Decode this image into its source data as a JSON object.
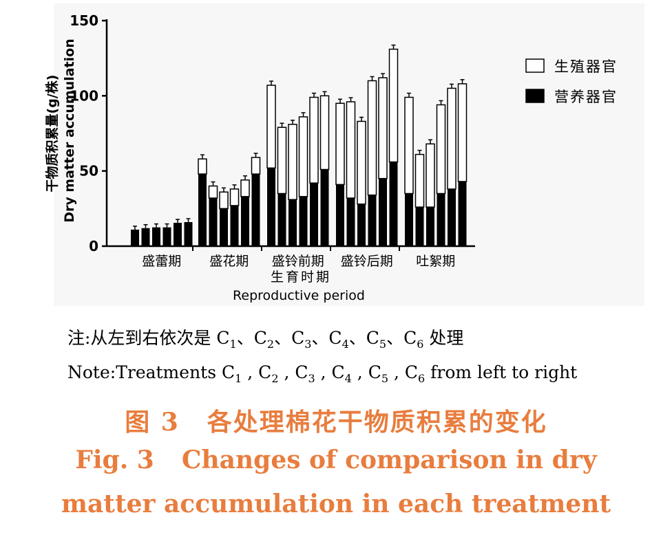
{
  "chart_data": {
    "type": "bar",
    "stacked": true,
    "ylabel_cn": "干物质积累量(g/株)",
    "ylabel_en": "Dry matter accumulation",
    "xlabel_cn": "生育时期",
    "xlabel_en": "Reproductive period",
    "ylim": [
      0,
      150
    ],
    "yticks": [
      0,
      50,
      100,
      150
    ],
    "groups": [
      "盛蕾期",
      "盛花期",
      "盛铃前期",
      "盛铃后期",
      "吐絮期"
    ],
    "treatments": [
      "C1",
      "C2",
      "C3",
      "C4",
      "C5",
      "C6"
    ],
    "legend_position": "right",
    "series": [
      {
        "name": "营养器官",
        "color": "#000000",
        "values": [
          [
            11,
            12,
            12.5,
            12.5,
            15.5,
            16
          ],
          [
            48,
            32,
            25,
            27,
            33,
            48
          ],
          [
            52,
            35,
            31,
            33,
            42,
            51
          ],
          [
            41,
            32,
            28,
            34,
            45,
            56
          ],
          [
            35,
            26,
            26,
            35,
            38,
            43
          ]
        ]
      },
      {
        "name": "生殖器官",
        "color": "#ffffff",
        "values": [
          [
            0,
            0,
            0,
            0,
            0,
            0
          ],
          [
            10,
            8,
            11,
            11,
            11,
            11
          ],
          [
            55,
            44,
            50,
            53,
            57,
            49
          ],
          [
            54,
            64,
            55,
            76,
            67,
            75
          ],
          [
            64,
            35,
            42,
            59,
            67,
            65
          ]
        ]
      }
    ]
  },
  "note": {
    "cn_prefix": "注:从左到右依次是",
    "cn_suffix": "处理",
    "en_prefix": "Note:Treatments",
    "en_suffix": "from left to right",
    "labels": [
      "C",
      "C",
      "C",
      "C",
      "C",
      "C"
    ],
    "subs": [
      "1",
      "2",
      "3",
      "4",
      "5",
      "6"
    ]
  },
  "caption": {
    "cn_label": "图 3",
    "cn_title": "各处理棉花干物质积累的变化",
    "en_label": "Fig. 3",
    "en_line1": "Changes of comparison in dry",
    "en_line2": "matter accumulation in each treatment",
    "color": "#e87d3e"
  }
}
